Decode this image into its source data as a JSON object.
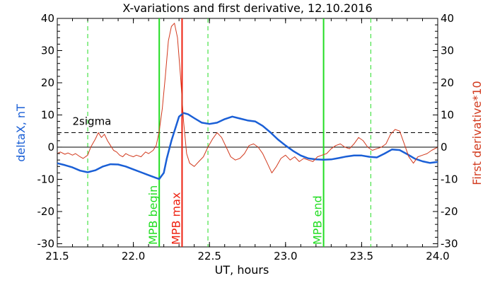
{
  "chart_data": {
    "type": "line",
    "title": "X-variations and first derivative, 12.10.2016",
    "xlabel": "UT, hours",
    "ylabel_left": "deltaX, nT",
    "ylabel_right": "First derivative*10",
    "xlim": [
      21.5,
      24.0
    ],
    "ylim": [
      -31,
      40
    ],
    "x_ticks": [
      21.5,
      22.0,
      22.5,
      23.0,
      23.5,
      24.0
    ],
    "x_tick_labels": [
      "21.5",
      "22.0",
      "22.5",
      "23.0",
      "23.5",
      "24.0"
    ],
    "y_ticks": [
      -30,
      -20,
      -10,
      0,
      10,
      20,
      30,
      40
    ],
    "y_tick_labels": [
      "-30",
      "-20",
      "-10",
      "0",
      "10",
      "20",
      "30",
      "40"
    ],
    "colors": {
      "deltaX": "#1a5fd6",
      "derivative": "#d23a1e",
      "mpb": "#22dd22",
      "mpb_max": "#ee2211",
      "axis": "#000000",
      "threshold": "#000000"
    },
    "series": [
      {
        "name": "deltaX, nT",
        "role": "deltaX",
        "x": [
          21.5,
          21.55,
          21.6,
          21.65,
          21.7,
          21.75,
          21.8,
          21.85,
          21.9,
          21.95,
          22.0,
          22.05,
          22.1,
          22.15,
          22.17,
          22.2,
          22.22,
          22.25,
          22.28,
          22.3,
          22.33,
          22.36,
          22.4,
          22.45,
          22.5,
          22.55,
          22.6,
          22.65,
          22.7,
          22.75,
          22.8,
          22.85,
          22.9,
          22.95,
          23.0,
          23.05,
          23.1,
          23.15,
          23.2,
          23.25,
          23.3,
          23.35,
          23.4,
          23.45,
          23.5,
          23.55,
          23.6,
          23.65,
          23.7,
          23.75,
          23.8,
          23.85,
          23.9,
          23.95,
          24.0
        ],
        "y": [
          -5,
          -5.6,
          -6.3,
          -7.3,
          -7.8,
          -7.2,
          -6.0,
          -5.3,
          -5.4,
          -6.0,
          -6.9,
          -7.8,
          -8.7,
          -9.6,
          -9.9,
          -8.0,
          -3.5,
          2.0,
          6.5,
          9.5,
          10.6,
          10.2,
          9.0,
          7.6,
          7.2,
          7.6,
          8.7,
          9.5,
          8.9,
          8.3,
          8.0,
          6.6,
          4.6,
          2.4,
          0.5,
          -1.2,
          -2.6,
          -3.5,
          -3.8,
          -3.9,
          -3.8,
          -3.4,
          -2.9,
          -2.6,
          -2.6,
          -3.0,
          -3.2,
          -2.0,
          -0.7,
          -0.9,
          -2.2,
          -3.6,
          -4.4,
          -4.9,
          -4.6
        ]
      },
      {
        "name": "First derivative*10",
        "role": "derivative",
        "x": [
          21.5,
          21.52,
          21.55,
          21.57,
          21.6,
          21.62,
          21.65,
          21.67,
          21.7,
          21.72,
          21.75,
          21.77,
          21.79,
          21.81,
          21.83,
          21.85,
          21.87,
          21.89,
          21.91,
          21.93,
          21.95,
          21.97,
          22.0,
          22.02,
          22.05,
          22.08,
          22.1,
          22.13,
          22.15,
          22.17,
          22.19,
          22.21,
          22.23,
          22.25,
          22.27,
          22.29,
          22.31,
          22.33,
          22.35,
          22.37,
          22.4,
          22.43,
          22.46,
          22.49,
          22.52,
          22.55,
          22.58,
          22.61,
          22.64,
          22.67,
          22.7,
          22.73,
          22.76,
          22.79,
          22.82,
          22.85,
          22.88,
          22.91,
          22.94,
          22.97,
          23.0,
          23.03,
          23.06,
          23.09,
          23.12,
          23.15,
          23.18,
          23.21,
          23.24,
          23.27,
          23.3,
          23.33,
          23.36,
          23.39,
          23.42,
          23.45,
          23.48,
          23.51,
          23.54,
          23.57,
          23.6,
          23.63,
          23.66,
          23.69,
          23.72,
          23.75,
          23.78,
          23.81,
          23.84,
          23.87,
          23.9,
          23.93,
          23.96,
          24.0
        ],
        "y": [
          -2,
          -1.5,
          -2.2,
          -1.8,
          -2.5,
          -2.0,
          -3.0,
          -3.5,
          -2.5,
          0.0,
          2.5,
          4.5,
          3.0,
          4.0,
          2.0,
          0.5,
          -1.0,
          -1.5,
          -2.5,
          -3.0,
          -2.0,
          -2.5,
          -3.0,
          -2.5,
          -3.0,
          -1.5,
          -2.0,
          -1.0,
          0.5,
          5.0,
          12.0,
          22.0,
          33.0,
          37.5,
          38.5,
          34.0,
          22.0,
          8.0,
          -2.0,
          -5.0,
          -6.0,
          -4.5,
          -3.0,
          0.0,
          2.5,
          4.5,
          3.0,
          0.0,
          -3.0,
          -4.0,
          -3.5,
          -2.0,
          0.5,
          1.0,
          0.0,
          -2.0,
          -5.0,
          -8.0,
          -6.0,
          -3.5,
          -2.5,
          -4.0,
          -3.0,
          -4.5,
          -3.5,
          -4.0,
          -4.5,
          -3.0,
          -2.5,
          -2.0,
          -0.5,
          0.5,
          1.0,
          0.0,
          -0.5,
          1.0,
          3.0,
          2.0,
          0.0,
          -1.0,
          -0.5,
          0.0,
          1.0,
          4.0,
          5.5,
          5.0,
          1.0,
          -3.0,
          -5.0,
          -3.0,
          -2.5,
          -2.0,
          -1.0,
          0.0
        ]
      }
    ],
    "reference_lines": {
      "zero": 0,
      "threshold": {
        "label": "2sigma",
        "value": 4.5
      }
    },
    "sigma_lines_x": [
      21.7,
      22.49,
      23.56
    ],
    "event_lines": [
      {
        "label": "MPB begin",
        "x": 22.17,
        "role": "mpb"
      },
      {
        "label": "MPB max",
        "x": 22.32,
        "role": "mpb_max"
      },
      {
        "label": "MPB end",
        "x": 23.25,
        "role": "mpb"
      }
    ],
    "grid": false,
    "legend": "none"
  }
}
